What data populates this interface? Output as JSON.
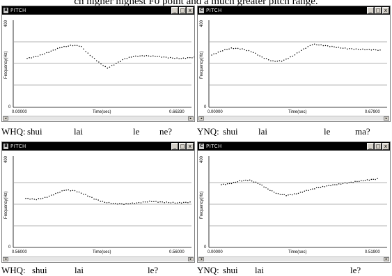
{
  "header_text": "ch higher highest F0 point and a much greater pitch range.",
  "panels": [
    {
      "id": "B",
      "title": "PITCH",
      "window_buttons": [
        "_",
        "□",
        "x"
      ],
      "y_axis_label": "Frequency(Hz)",
      "y_max_label": "400",
      "y_min_label": "0",
      "x_axis_label": "Time(sec)",
      "x_start_label": "0.00000",
      "x_end_label": "0.66330",
      "contour": [
        [
          0,
          225
        ],
        [
          0.05,
          232
        ],
        [
          0.1,
          245
        ],
        [
          0.15,
          260
        ],
        [
          0.2,
          275
        ],
        [
          0.27,
          285
        ],
        [
          0.32,
          282
        ],
        [
          0.36,
          250
        ],
        [
          0.4,
          225
        ],
        [
          0.44,
          200
        ],
        [
          0.48,
          180
        ],
        [
          0.53,
          200
        ],
        [
          0.58,
          222
        ],
        [
          0.63,
          233
        ],
        [
          0.7,
          237
        ],
        [
          0.78,
          234
        ],
        [
          0.85,
          228
        ],
        [
          0.92,
          224
        ],
        [
          1,
          230
        ]
      ],
      "caption": {
        "q_type": "WHQ:",
        "syllables": [
          "shui",
          "lai",
          "le",
          "ne?"
        ]
      }
    },
    {
      "id": "C",
      "title": "PITCH",
      "window_buttons": [
        "_",
        "□",
        "x"
      ],
      "y_axis_label": "Frequency(Hz)",
      "y_max_label": "400",
      "y_min_label": "0",
      "x_axis_label": "Time(sec)",
      "x_start_label": "0.00000",
      "x_end_label": "0.67900",
      "contour": [
        [
          0,
          240
        ],
        [
          0.06,
          260
        ],
        [
          0.12,
          272
        ],
        [
          0.18,
          268
        ],
        [
          0.24,
          255
        ],
        [
          0.3,
          230
        ],
        [
          0.36,
          212
        ],
        [
          0.42,
          213
        ],
        [
          0.48,
          235
        ],
        [
          0.54,
          265
        ],
        [
          0.6,
          290
        ],
        [
          0.66,
          285
        ],
        [
          0.72,
          278
        ],
        [
          0.8,
          270
        ],
        [
          0.88,
          266
        ],
        [
          0.95,
          265
        ],
        [
          1,
          262
        ]
      ],
      "caption": {
        "q_type": "YNQ:",
        "syllables": [
          "shui",
          "lai",
          "le",
          "ma?"
        ]
      }
    },
    {
      "id": "B",
      "title": "PITCH",
      "window_buttons": [
        "_",
        "□",
        "x"
      ],
      "y_axis_label": "Frequency(Hz)",
      "y_max_label": "400",
      "y_min_label": "0",
      "x_axis_label": "Time(sec)",
      "x_start_label": "0.56000",
      "x_end_label": "0.56000",
      "contour": [
        [
          0,
          215
        ],
        [
          0.06,
          210
        ],
        [
          0.12,
          218
        ],
        [
          0.18,
          235
        ],
        [
          0.24,
          252
        ],
        [
          0.3,
          248
        ],
        [
          0.36,
          232
        ],
        [
          0.42,
          212
        ],
        [
          0.48,
          198
        ],
        [
          0.54,
          192
        ],
        [
          0.6,
          190
        ],
        [
          0.68,
          195
        ],
        [
          0.76,
          202
        ],
        [
          0.84,
          198
        ],
        [
          0.92,
          195
        ],
        [
          1,
          198
        ]
      ],
      "caption": {
        "q_type": "WHQ:",
        "syllables": [
          "shui",
          "lai",
          "le?"
        ]
      }
    },
    {
      "id": "C",
      "title": "PITCH",
      "window_buttons": [
        "_",
        "□",
        "x"
      ],
      "y_axis_label": "Frequency(Hz)",
      "y_max_label": "400",
      "y_min_label": "0",
      "x_axis_label": "Time(sec)",
      "x_start_label": "0.00000",
      "x_end_label": "0.51900",
      "contour": [
        [
          0,
          275
        ],
        [
          0.06,
          280
        ],
        [
          0.12,
          292
        ],
        [
          0.18,
          295
        ],
        [
          0.24,
          280
        ],
        [
          0.3,
          255
        ],
        [
          0.36,
          235
        ],
        [
          0.42,
          228
        ],
        [
          0.48,
          235
        ],
        [
          0.55,
          250
        ],
        [
          0.62,
          262
        ],
        [
          0.7,
          272
        ],
        [
          0.78,
          280
        ],
        [
          0.86,
          288
        ],
        [
          0.93,
          295
        ],
        [
          1,
          300
        ]
      ],
      "caption": {
        "q_type": "YNQ:",
        "syllables": [
          "shui",
          "lai",
          "le?"
        ]
      }
    }
  ]
}
